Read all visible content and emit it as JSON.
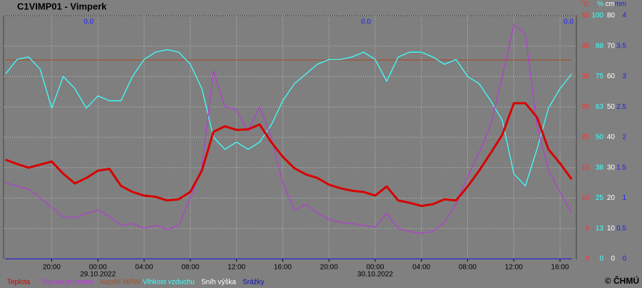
{
  "chart_data": {
    "type": "line",
    "title": "C1VIMP01 - Vimperk",
    "copyright": "© ČHMÚ",
    "x": [
      "2022-10-28 16:00",
      "2022-10-28 17:00",
      "2022-10-28 18:00",
      "2022-10-28 19:00",
      "2022-10-28 20:00",
      "2022-10-28 21:00",
      "2022-10-28 22:00",
      "2022-10-28 23:00",
      "2022-10-29 00:00",
      "2022-10-29 01:00",
      "2022-10-29 02:00",
      "2022-10-29 03:00",
      "2022-10-29 04:00",
      "2022-10-29 05:00",
      "2022-10-29 06:00",
      "2022-10-29 07:00",
      "2022-10-29 08:00",
      "2022-10-29 09:00",
      "2022-10-29 10:00",
      "2022-10-29 11:00",
      "2022-10-29 12:00",
      "2022-10-29 13:00",
      "2022-10-29 14:00",
      "2022-10-29 15:00",
      "2022-10-29 16:00",
      "2022-10-29 17:00",
      "2022-10-29 18:00",
      "2022-10-29 19:00",
      "2022-10-29 20:00",
      "2022-10-29 21:00",
      "2022-10-29 22:00",
      "2022-10-29 23:00",
      "2022-10-30 00:00",
      "2022-10-30 01:00",
      "2022-10-30 02:00",
      "2022-10-30 03:00",
      "2022-10-30 04:00",
      "2022-10-30 05:00",
      "2022-10-30 06:00",
      "2022-10-30 07:00",
      "2022-10-30 08:00",
      "2022-10-30 09:00",
      "2022-10-30 10:00",
      "2022-10-30 11:00",
      "2022-10-30 12:00",
      "2022-10-30 13:00",
      "2022-10-30 14:00",
      "2022-10-30 15:00",
      "2022-10-30 16:00",
      "2022-10-30 17:00"
    ],
    "xlim": [
      "2022-10-28 15:50",
      "2022-10-30 17:25"
    ],
    "xticks": [
      {
        "value": "2022-10-28 20:00",
        "label": "20:00"
      },
      {
        "value": "2022-10-29 00:00",
        "label": "00:00",
        "date": "29.10.2022"
      },
      {
        "value": "2022-10-29 04:00",
        "label": "04:00"
      },
      {
        "value": "2022-10-29 08:00",
        "label": "08:00"
      },
      {
        "value": "2022-10-29 12:00",
        "label": "12:00"
      },
      {
        "value": "2022-10-29 16:00",
        "label": "16:00"
      },
      {
        "value": "2022-10-29 20:00",
        "label": "20:00"
      },
      {
        "value": "2022-10-30 00:00",
        "label": "00:00",
        "date": "30.10.2022"
      },
      {
        "value": "2022-10-30 04:00",
        "label": "04:00"
      },
      {
        "value": "2022-10-30 08:00",
        "label": "08:00"
      },
      {
        "value": "2022-10-30 12:00",
        "label": "12:00"
      },
      {
        "value": "2022-10-30 16:00",
        "label": "16:00"
      }
    ],
    "y_units": [
      "°C",
      "%",
      "cm",
      "mm"
    ],
    "ylim": [
      0,
      40
    ],
    "yticks": [
      0,
      5,
      10,
      15,
      20,
      25,
      30,
      35,
      40
    ],
    "ycolor": "#ff3030",
    "y2lim": [
      0,
      100
    ],
    "y2ticks": [
      0,
      {
        "value": 12.5,
        "label": "13"
      },
      25,
      {
        "value": 37.5,
        "label": "38"
      },
      50,
      {
        "value": 62.5,
        "label": "63"
      },
      75,
      {
        "value": 87.5,
        "label": "88"
      },
      100
    ],
    "y2color": "#40ffff",
    "y3lim": [
      0,
      80
    ],
    "y3ticks": [
      0,
      10,
      20,
      30,
      40,
      50,
      60,
      70,
      80
    ],
    "y3color": "#ffffff",
    "y4lim": [
      0,
      4
    ],
    "y4ticks": [
      0,
      0.5,
      1,
      1.5,
      2,
      2.5,
      3,
      3.5,
      4
    ],
    "y4color": "#2020ff",
    "grid": true,
    "daily_precip_labels": [
      "0.0",
      "0.0",
      "0.0"
    ],
    "series": [
      {
        "name": "Sníh výška",
        "color": "#ffffff",
        "axis": "y3",
        "values": [
          0,
          0,
          0,
          0,
          0,
          0,
          0,
          0,
          0,
          0,
          0,
          0,
          0,
          0,
          0,
          0,
          0,
          0,
          0,
          0,
          0,
          0,
          0,
          0,
          0,
          0,
          0,
          0,
          0,
          0,
          0,
          0,
          0,
          0,
          0,
          0,
          0,
          0,
          0,
          0,
          0,
          0,
          0,
          0,
          0,
          0,
          0,
          0,
          0,
          0
        ]
      },
      {
        "name": "Srážky",
        "color": "#1010c0",
        "axis": "y4",
        "values": [
          0,
          0,
          0,
          0,
          0,
          0,
          0,
          0,
          0,
          0,
          0,
          0,
          0,
          0,
          0,
          0,
          0,
          0,
          0,
          0,
          0,
          0,
          0,
          0,
          0,
          0,
          0,
          0,
          0,
          0,
          0,
          0,
          0,
          0,
          0,
          0,
          0,
          0,
          0,
          0,
          0,
          0,
          0,
          0,
          0,
          0,
          0,
          0,
          0,
          0
        ]
      },
      {
        "name": "Napětí MRW",
        "color": "#a0522d",
        "axis": "y",
        "values": [
          32.7,
          32.7,
          32.7,
          32.7,
          32.7,
          32.7,
          32.7,
          32.7,
          32.7,
          32.7,
          32.7,
          32.7,
          32.7,
          32.7,
          32.7,
          32.7,
          32.7,
          32.7,
          32.7,
          32.7,
          32.7,
          32.7,
          32.7,
          32.7,
          32.7,
          32.7,
          32.7,
          32.7,
          32.7,
          32.7,
          32.7,
          32.7,
          32.7,
          32.7,
          32.7,
          32.7,
          32.7,
          32.7,
          32.7,
          32.7,
          32.7,
          32.7,
          32.7,
          32.7,
          32.7,
          32.7,
          32.7,
          32.7,
          32.7,
          32.7
        ]
      },
      {
        "name": "Vlhkost vzduchu",
        "color": "#40ffff",
        "axis": "y2",
        "values": [
          76,
          82,
          83,
          78,
          62,
          75,
          70,
          62,
          67,
          65,
          65,
          75,
          82,
          85,
          86,
          85,
          80,
          70,
          50,
          45,
          48,
          45,
          48,
          55,
          65,
          72,
          76,
          80,
          82,
          82,
          83,
          85,
          82,
          73,
          83,
          85,
          85,
          83,
          80,
          82,
          75,
          72,
          65,
          57,
          35,
          30,
          45,
          62,
          70,
          76
        ]
      },
      {
        "name": "Teplota přízemní",
        "color": "#b040d0",
        "axis": "y",
        "values": [
          12.5,
          12.0,
          11.5,
          10.0,
          8.5,
          6.9,
          6.8,
          7.5,
          8.0,
          7.0,
          5.5,
          5.8,
          5.0,
          5.5,
          4.8,
          5.5,
          10.0,
          15.0,
          31.0,
          25.0,
          24.5,
          21.0,
          25.0,
          20.0,
          12.5,
          8.0,
          9.0,
          7.5,
          6.5,
          6.0,
          5.8,
          5.5,
          5.2,
          7.5,
          5.0,
          4.5,
          4.2,
          4.5,
          6.0,
          9.0,
          13.5,
          17.5,
          22.0,
          30.0,
          38.5,
          37.0,
          22.0,
          14.5,
          11.0,
          7.5
        ]
      },
      {
        "name": "Teplota",
        "color": "#d80000",
        "axis": "y",
        "width": 3,
        "values": [
          16.3,
          15.6,
          15.0,
          15.5,
          16.0,
          14.0,
          12.4,
          13.3,
          14.5,
          14.8,
          12.0,
          11.0,
          10.4,
          10.2,
          9.6,
          9.8,
          11.0,
          14.5,
          20.9,
          21.8,
          21.2,
          21.3,
          22.1,
          19.2,
          16.8,
          14.9,
          13.9,
          13.3,
          12.2,
          11.6,
          11.2,
          11.0,
          10.4,
          11.9,
          9.6,
          9.2,
          8.7,
          9.0,
          9.8,
          9.6,
          11.9,
          14.5,
          17.4,
          20.4,
          25.6,
          25.6,
          23.3,
          18.0,
          15.7,
          13.1
        ]
      }
    ],
    "legend_order": [
      5,
      4,
      2,
      3,
      0,
      1
    ]
  }
}
